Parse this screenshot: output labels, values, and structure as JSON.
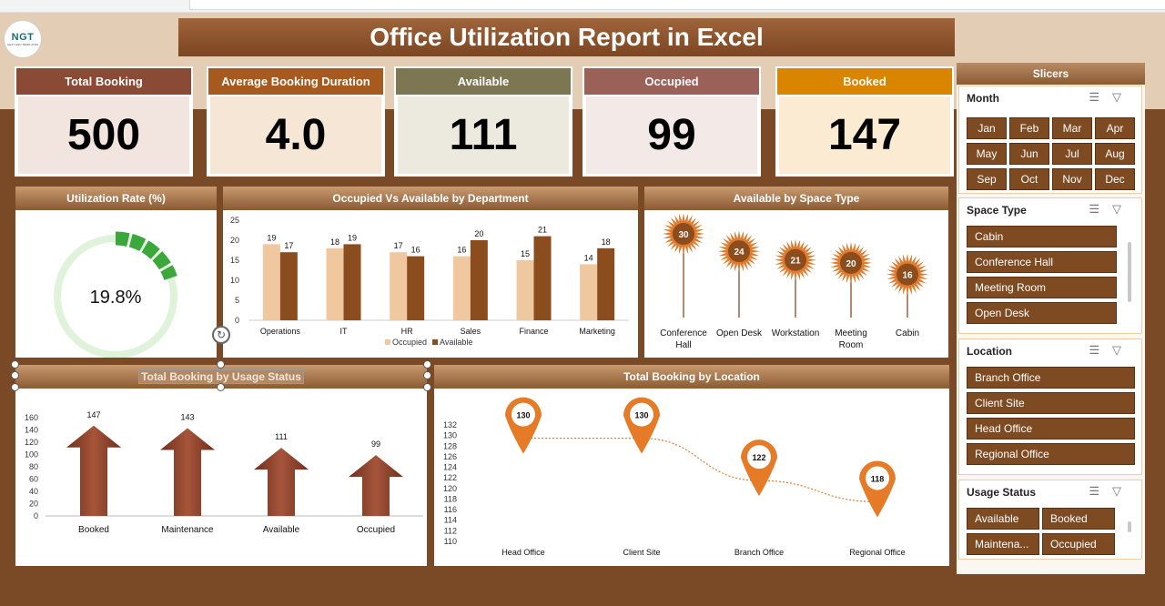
{
  "title": "Office Utilization Report in Excel",
  "logo": {
    "text": "NGT",
    "sub": "NEXT GEN TEMPLATES"
  },
  "kpis": [
    {
      "label": "Total Booking",
      "value": "500",
      "color": "#8b4a36",
      "bg": "#f2e4df"
    },
    {
      "label": "Average Booking Duration",
      "value": "4.0",
      "color": "#a65a1e",
      "bg": "#f6e6d6"
    },
    {
      "label": "Available",
      "value": "111",
      "color": "#7d7653",
      "bg": "#ece9df"
    },
    {
      "label": "Occupied",
      "value": "99",
      "color": "#9a6158",
      "bg": "#f3e9e6"
    },
    {
      "label": "Booked",
      "value": "147",
      "color": "#d98500",
      "bg": "#fcebd3"
    }
  ],
  "panels": {
    "utilization": "Utilization Rate (%)",
    "occ_vs_avail": "Occupied Vs Available by Department",
    "space_type": "Available by Space Type",
    "usage_status": "Total Booking by Usage Status",
    "location": "Total Booking by Location"
  },
  "slicers": {
    "title": "Slicers",
    "month": {
      "title": "Month",
      "items": [
        "Jan",
        "Feb",
        "Mar",
        "Apr",
        "May",
        "Jun",
        "Jul",
        "Aug",
        "Sep",
        "Oct",
        "Nov",
        "Dec"
      ]
    },
    "space_type": {
      "title": "Space Type",
      "items": [
        "Cabin",
        "Conference Hall",
        "Meeting Room",
        "Open Desk"
      ]
    },
    "location": {
      "title": "Location",
      "items": [
        "Branch Office",
        "Client Site",
        "Head Office",
        "Regional Office"
      ]
    },
    "usage_status": {
      "title": "Usage Status",
      "items": [
        "Available",
        "Booked",
        "Maintena...",
        "Occupied"
      ]
    }
  },
  "chart_data": [
    {
      "type": "pie",
      "name": "utilization",
      "value_label": "19.8%",
      "values": [
        19.8,
        80.2
      ],
      "colors": [
        "#3aa83a",
        "#dff2da"
      ]
    },
    {
      "type": "bar",
      "name": "occ_vs_avail",
      "categories": [
        "Operations",
        "IT",
        "HR",
        "Sales",
        "Finance",
        "Marketing"
      ],
      "series": [
        {
          "name": "Occupied",
          "values": [
            19,
            18,
            17,
            16,
            15,
            14
          ],
          "color": "#f0c8a0"
        },
        {
          "name": "Available",
          "values": [
            17,
            19,
            16,
            20,
            21,
            18
          ],
          "color": "#8b4c1e"
        }
      ],
      "ylim": [
        0,
        25
      ],
      "yticks": [
        "0",
        "5",
        "10",
        "15",
        "20",
        "25"
      ],
      "legend": "bottom"
    },
    {
      "type": "scatter",
      "name": "space_type",
      "categories": [
        "Conference Hall",
        "Open Desk",
        "Workstation",
        "Meeting Room",
        "Cabin"
      ],
      "values": [
        30,
        24,
        21,
        20,
        16
      ]
    },
    {
      "type": "bar",
      "name": "usage_status",
      "categories": [
        "Booked",
        "Maintenance",
        "Available",
        "Occupied"
      ],
      "values": [
        147,
        143,
        111,
        99
      ],
      "ylim": [
        0,
        160
      ],
      "yticks": [
        "0",
        "20",
        "40",
        "60",
        "80",
        "100",
        "120",
        "140",
        "160"
      ]
    },
    {
      "type": "line",
      "name": "location",
      "categories": [
        "Head Office",
        "Client Site",
        "Branch Office",
        "Regional Office"
      ],
      "values": [
        130,
        130,
        122,
        118
      ],
      "ylim": [
        110,
        132
      ],
      "yticks": [
        "110",
        "112",
        "114",
        "116",
        "118",
        "120",
        "122",
        "124",
        "126",
        "128",
        "130",
        "132"
      ]
    }
  ]
}
